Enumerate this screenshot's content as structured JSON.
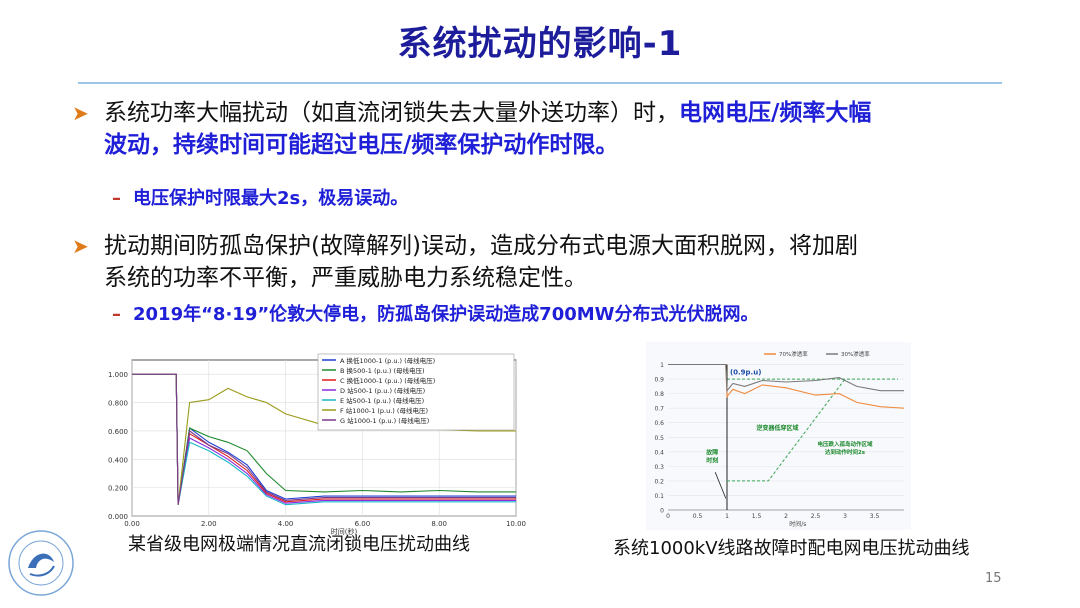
{
  "slide": {
    "title": "系统扰动的影响-1",
    "page_number": "15"
  },
  "bullets": [
    {
      "text_plain": "系统功率大幅扰动（如直流闭锁失去大量外送功率）时，",
      "text_highlight_1": "电网电压/频率大幅",
      "text_highlight_2": "波动，持续时间可能超过电压/频率保护动作时限。",
      "sub": "电压保护时限最大2s，极易误动。"
    },
    {
      "line1": "扰动期间防孤岛保护(故障解列)误动，造成分布式电源大面积脱网，将加剧",
      "line2": "系统的功率不平衡，严重威胁电力系统稳定性。",
      "sub": "2019年“8·19”伦敦大停电，防孤岛保护误动造成700MW分布式光伏脱网。"
    }
  ],
  "captions": {
    "left": "某省级电网极端情况直流闭锁电压扰动曲线",
    "right": "系统1000kV线路故障时配电网电压扰动曲线"
  },
  "chart_data": [
    {
      "type": "line",
      "xlabel": "时间(秒)",
      "x_ticks": [
        "0.00",
        "2.00",
        "4.00",
        "6.00",
        "8.00",
        "10.00"
      ],
      "y_ticks": [
        "0.000",
        "0.200",
        "0.400",
        "0.600",
        "0.800",
        "1.000"
      ],
      "xlim": [
        0,
        10
      ],
      "ylim": [
        0,
        1.1
      ],
      "legend_position": "top-right",
      "series": [
        {
          "name": "A  换低1000-1 (p.u.) (母线电压)",
          "color": "#1f3fd0",
          "x": [
            0,
            1.15,
            1.2,
            1.5,
            2.0,
            2.5,
            3.0,
            3.5,
            4.0,
            5,
            6,
            7,
            8,
            9,
            10
          ],
          "y": [
            1.0,
            1.0,
            0.08,
            0.62,
            0.52,
            0.45,
            0.36,
            0.18,
            0.12,
            0.14,
            0.14,
            0.14,
            0.14,
            0.14,
            0.14
          ]
        },
        {
          "name": "B  换500-1 (p.u.) (母线电压)",
          "color": "#1e8a2e",
          "x": [
            0,
            1.15,
            1.2,
            1.5,
            2.0,
            2.5,
            3.0,
            3.5,
            4.0,
            5,
            6,
            7,
            8,
            9,
            10
          ],
          "y": [
            1.0,
            1.0,
            0.08,
            0.62,
            0.56,
            0.52,
            0.46,
            0.3,
            0.18,
            0.17,
            0.18,
            0.17,
            0.18,
            0.17,
            0.17
          ]
        },
        {
          "name": "C  换低1000-1 (p.u.) (母线电压)",
          "color": "#e01a1a",
          "x": [
            0,
            1.15,
            1.2,
            1.5,
            2.0,
            2.5,
            3.0,
            3.5,
            4.0,
            5,
            6,
            7,
            8,
            9,
            10
          ],
          "y": [
            1.0,
            1.0,
            0.08,
            0.58,
            0.5,
            0.42,
            0.32,
            0.16,
            0.1,
            0.12,
            0.12,
            0.12,
            0.12,
            0.12,
            0.12
          ]
        },
        {
          "name": "D  站500-1 (p.u.) (母线电压)",
          "color": "#8a2be2",
          "x": [
            0,
            1.15,
            1.2,
            1.5,
            2.0,
            2.5,
            3.0,
            3.5,
            4.0,
            5,
            6,
            7,
            8,
            9,
            10
          ],
          "y": [
            1.0,
            1.0,
            0.08,
            0.55,
            0.48,
            0.4,
            0.3,
            0.15,
            0.09,
            0.11,
            0.11,
            0.11,
            0.11,
            0.11,
            0.11
          ]
        },
        {
          "name": "E  站500-1 (p.u.) (母线电压)",
          "color": "#19b5c9",
          "x": [
            0,
            1.15,
            1.2,
            1.5,
            2.0,
            2.5,
            3.0,
            3.5,
            4.0,
            5,
            6,
            7,
            8,
            9,
            10
          ],
          "y": [
            1.0,
            1.0,
            0.08,
            0.52,
            0.46,
            0.38,
            0.28,
            0.14,
            0.08,
            0.1,
            0.1,
            0.1,
            0.1,
            0.1,
            0.1
          ]
        },
        {
          "name": "F  站1000-1 (p.u.) (母线电压)",
          "color": "#9a9a1a",
          "x": [
            0,
            1.15,
            1.2,
            1.5,
            2.0,
            2.5,
            3.0,
            3.5,
            4.0,
            5,
            6,
            7,
            8,
            9,
            10
          ],
          "y": [
            1.0,
            1.0,
            0.08,
            0.8,
            0.82,
            0.9,
            0.84,
            0.8,
            0.72,
            0.64,
            0.62,
            0.61,
            0.61,
            0.6,
            0.6
          ]
        },
        {
          "name": "G  站1000-1 (p.u.) (母线电压)",
          "color": "#7a3a8a",
          "x": [
            0,
            1.15,
            1.2,
            1.5,
            2.0,
            2.5,
            3.0,
            3.5,
            4.0,
            5,
            6,
            7,
            8,
            9,
            10
          ],
          "y": [
            1.0,
            1.0,
            0.08,
            0.6,
            0.5,
            0.44,
            0.34,
            0.17,
            0.11,
            0.13,
            0.13,
            0.13,
            0.13,
            0.13,
            0.13
          ]
        }
      ]
    },
    {
      "type": "line",
      "xlabel": "时间/s",
      "x_ticks": [
        "0",
        "0.5",
        "1",
        "1.5",
        "2",
        "2.5",
        "3",
        "3.5"
      ],
      "y_ticks": [
        "0",
        "0.1",
        "0.2",
        "0.3",
        "0.4",
        "0.5",
        "0.6",
        "0.7",
        "0.8",
        "0.9",
        "1"
      ],
      "xlim": [
        0,
        4
      ],
      "ylim": [
        0,
        1.1
      ],
      "legend_position": "top",
      "annotations": [
        "(0.9p.u)",
        "逆变器低穿区域",
        "电压跌入孤岛动作区域\n达到动作时间2s",
        "故障\n时刻"
      ],
      "series": [
        {
          "name": "70%渗透率",
          "color": "#f08a3c",
          "x": [
            0,
            0.98,
            1.0,
            1.1,
            1.3,
            1.6,
            2.0,
            2.5,
            2.9,
            3.2,
            3.6,
            4.0
          ],
          "y": [
            1.0,
            1.0,
            0.78,
            0.83,
            0.8,
            0.86,
            0.84,
            0.79,
            0.8,
            0.74,
            0.71,
            0.7
          ]
        },
        {
          "name": "30%渗透率",
          "color": "#7a7a7a",
          "x": [
            0,
            0.98,
            1.0,
            1.1,
            1.3,
            1.6,
            2.0,
            2.5,
            2.9,
            3.2,
            3.6,
            4.0
          ],
          "y": [
            1.0,
            1.0,
            0.82,
            0.87,
            0.85,
            0.89,
            0.88,
            0.89,
            0.91,
            0.85,
            0.82,
            0.82
          ]
        }
      ]
    }
  ]
}
